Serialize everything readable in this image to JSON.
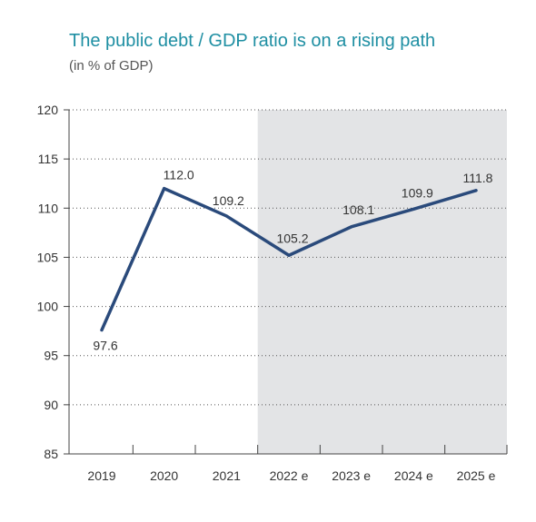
{
  "chart_data": {
    "type": "line",
    "title": "The public debt / GDP ratio is on a rising path",
    "subtitle": "(in % of GDP)",
    "categories": [
      "2019",
      "2020",
      "2021",
      "2022 e",
      "2023 e",
      "2024 e",
      "2025 e"
    ],
    "series": [
      {
        "values": [
          97.6,
          112.0,
          109.2,
          105.2,
          108.1,
          109.9,
          111.8
        ]
      }
    ],
    "data_labels": [
      "97.6",
      "112.0",
      "109.2",
      "105.2",
      "108.1",
      "109.9",
      "111.8"
    ],
    "ylim": [
      85,
      120
    ],
    "yticks": [
      85,
      90,
      95,
      100,
      105,
      110,
      115,
      120
    ],
    "ytick_labels": [
      "85",
      "90",
      "95",
      "100",
      "105",
      "110",
      "115",
      "120"
    ],
    "grid": "horizontal dotted",
    "shaded_region": {
      "from_category": "2022 e",
      "to_category": "2025 e"
    },
    "colors": {
      "line": "#2a4a7b",
      "shade": "#e3e4e6",
      "title": "#1f8fa3"
    }
  }
}
